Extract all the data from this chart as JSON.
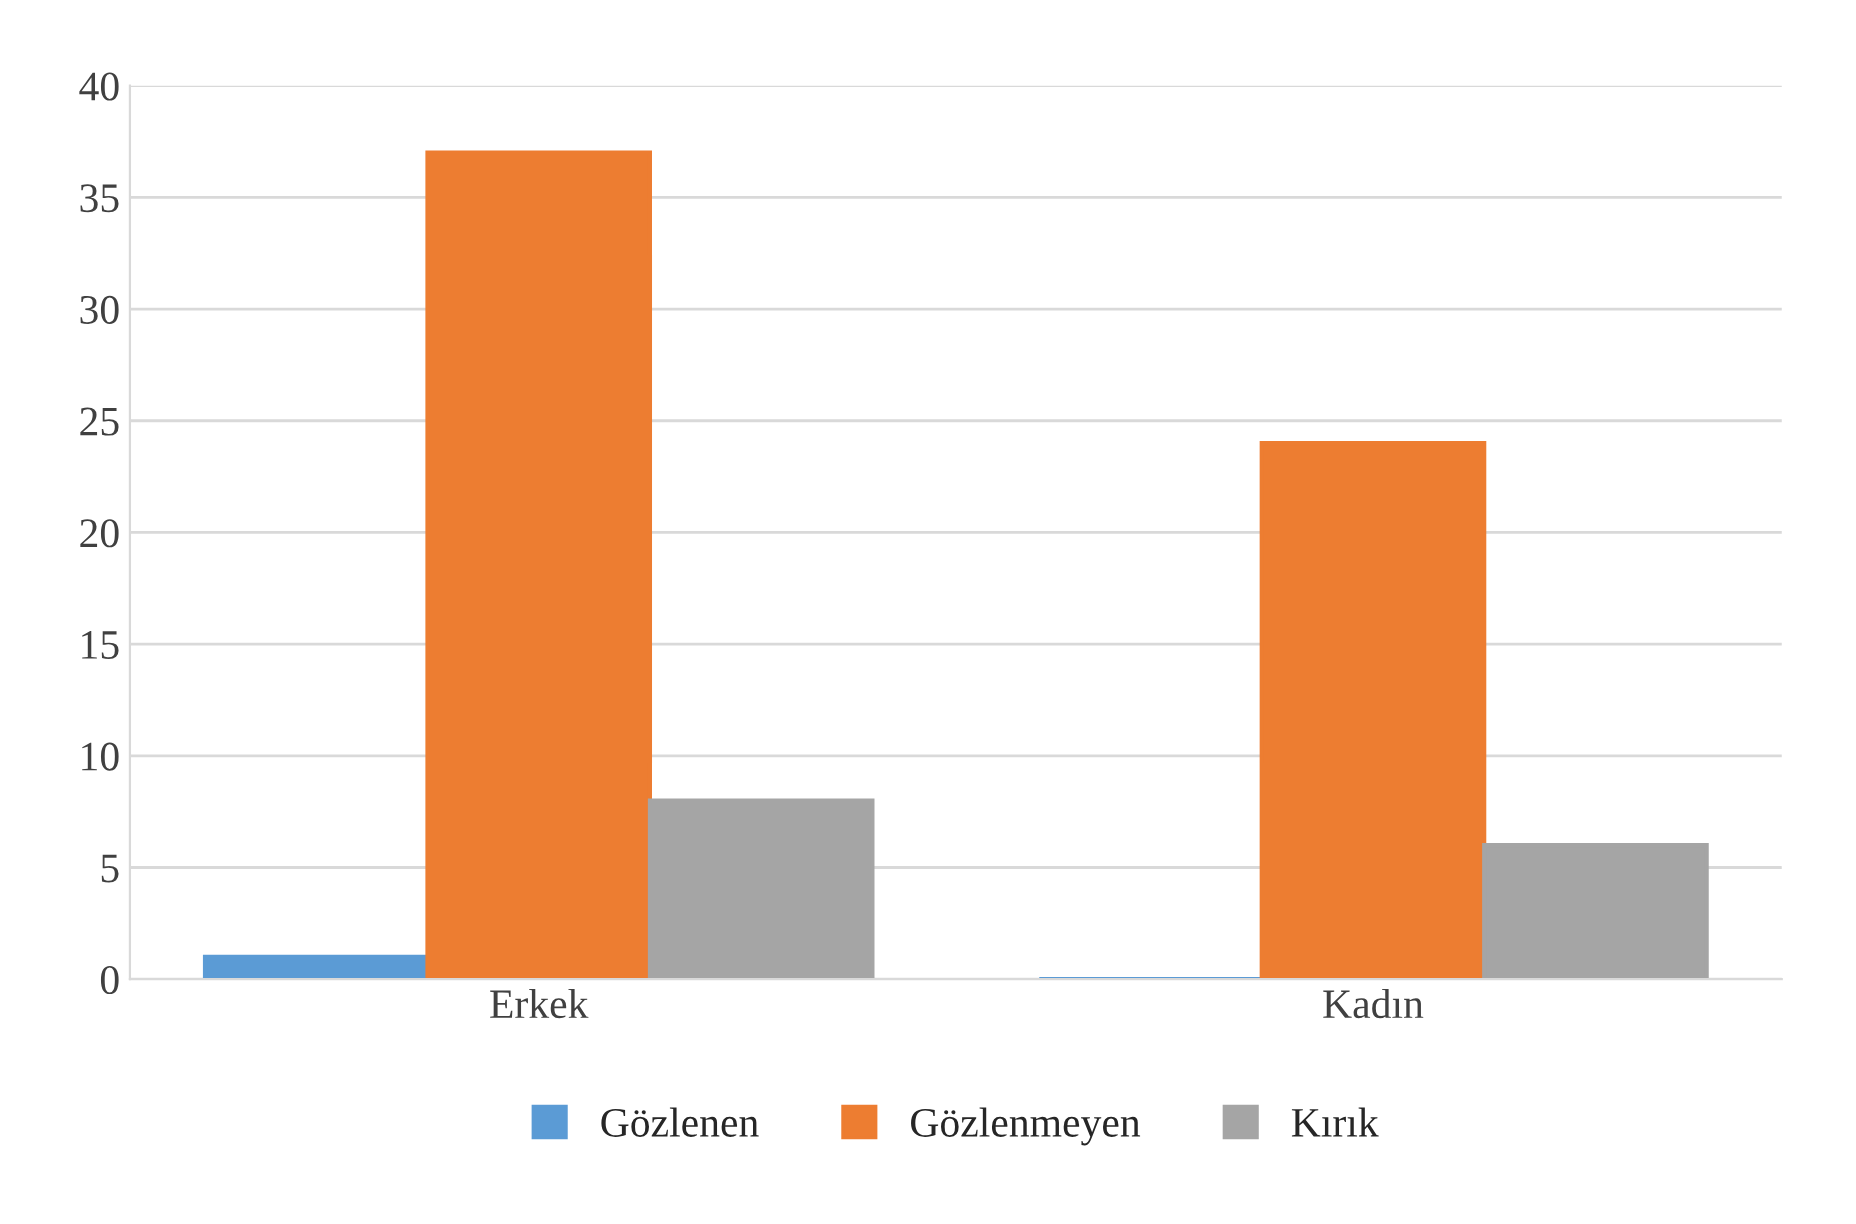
{
  "chart_data": {
    "type": "bar",
    "categories": [
      "Erkek",
      "Kadın"
    ],
    "series": [
      {
        "name": "Gözlenen",
        "color": "#5b9bd5",
        "values": [
          1,
          0
        ]
      },
      {
        "name": "Gözlenmeyen",
        "color": "#ed7d31",
        "values": [
          37,
          24
        ]
      },
      {
        "name": "Kırık",
        "color": "#a5a5a5",
        "values": [
          8,
          6
        ]
      }
    ],
    "ylim": [
      0,
      40
    ],
    "yticks": [
      0,
      5,
      10,
      15,
      20,
      25,
      30,
      35,
      40
    ],
    "grid": "y",
    "legend": "bottom"
  }
}
